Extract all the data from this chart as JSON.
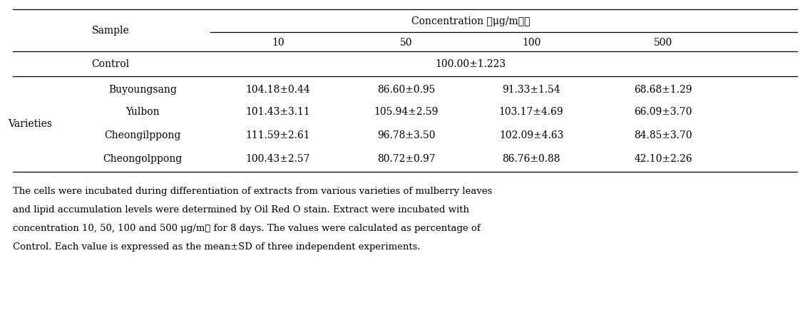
{
  "concentration_header": "Concentration （μg/mℓ）",
  "conc_subheaders": [
    "10",
    "50",
    "100",
    "500"
  ],
  "sample_label": "Sample",
  "varieties_label": "Varieties",
  "control_label": "Control",
  "control_value": "100.00±1.223",
  "varieties": [
    "Buyoungsang",
    "Yulbon",
    "Cheongilppong",
    "Cheongolppong"
  ],
  "data": {
    "Buyoungsang": [
      "104.18±0.44",
      "86.60±0.95",
      "91.33±1.54",
      "68.68±1.29"
    ],
    "Yulbon": [
      "101.43±3.11",
      "105.94±2.59",
      "103.17±4.69",
      "66.09±3.70"
    ],
    "Cheongilppong": [
      "111.59±2.61",
      "96.78±3.50",
      "102.09±4.63",
      "84.85±3.70"
    ],
    "Cheongolppong": [
      "100.43±2.57",
      "80.72±0.97",
      "86.76±0.88",
      "42.10±2.26"
    ]
  },
  "footnote_lines": [
    "The cells were incubated during differentiation of extracts from various varieties of mulberry leaves",
    "and lipid accumulation levels were determined by Oil Red O stain. Extract were incubated with",
    "concentration 10, 50, 100 and 500 μg/mℓ for 8 days. The values were calculated as percentage of",
    "Control. Each value is expressed as the mean±SD of three independent experiments."
  ],
  "bg_color": "#ffffff",
  "text_color": "#000000",
  "font_size": 10.0,
  "footnote_font_size": 9.5
}
